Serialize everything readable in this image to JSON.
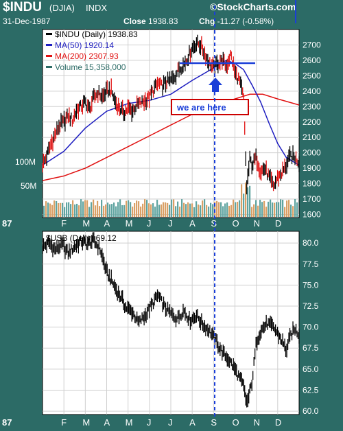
{
  "header": {
    "symbol": "$INDU",
    "exchange": "(DJIA)",
    "type": "INDX",
    "brand": "©StockCharts.com",
    "date": "31-Dec-1987",
    "close_label": "Close",
    "close_value": "1938.83",
    "chg_label": "Chg",
    "chg_value": "-11.27 (-0.58%)"
  },
  "colors": {
    "background": "#2c6b66",
    "panel": "#ffffff",
    "price": "#000000",
    "ma50": "#1d1dc0",
    "ma200": "#e01010",
    "volume_up": "#5fa4a0",
    "volume_down": "#d9a066",
    "annotation": "#1b3fd8"
  },
  "chart_data": [
    {
      "type": "line",
      "panel": "upper",
      "legend": [
        {
          "label": "$INDU (Daily) 1938.83",
          "color": "#000000"
        },
        {
          "label": "MA(50) 1920.14",
          "color": "#1d1dc0"
        },
        {
          "label": "MA(200) 2307.93",
          "color": "#e01010"
        },
        {
          "label": "Volume 15,358,000",
          "color": "#2c6b66"
        }
      ],
      "x_months": [
        "87",
        "F",
        "M",
        "A",
        "M",
        "J",
        "J",
        "A",
        "S",
        "O",
        "N",
        "D"
      ],
      "xlim": [
        0,
        12
      ],
      "ylim": [
        1580,
        2800
      ],
      "y_ticks": [
        1600,
        1700,
        1800,
        1900,
        2000,
        2100,
        2200,
        2300,
        2400,
        2500,
        2600,
        2700
      ],
      "volume_ticks": [
        "50M",
        "100M"
      ],
      "series": [
        {
          "name": "$INDU",
          "x": [
            0,
            0.2,
            0.4,
            0.6,
            0.8,
            1.0,
            1.2,
            1.4,
            1.6,
            1.8,
            2.0,
            2.2,
            2.4,
            2.6,
            2.8,
            3.0,
            3.2,
            3.4,
            3.6,
            3.8,
            4.0,
            4.2,
            4.4,
            4.6,
            4.8,
            5.0,
            5.2,
            5.4,
            5.6,
            5.8,
            6.0,
            6.2,
            6.4,
            6.6,
            6.8,
            7.0,
            7.2,
            7.4,
            7.6,
            7.8,
            8.0,
            8.2,
            8.4,
            8.6,
            8.8,
            9.0,
            9.2,
            9.4,
            9.55,
            9.7,
            9.8,
            10.0,
            10.2,
            10.4,
            10.6,
            10.8,
            11.0,
            11.2,
            11.4,
            11.6,
            11.8,
            12.0
          ],
          "values": [
            1920,
            1980,
            2060,
            2120,
            2180,
            2200,
            2240,
            2210,
            2280,
            2300,
            2330,
            2280,
            2360,
            2390,
            2360,
            2400,
            2410,
            2330,
            2290,
            2260,
            2290,
            2270,
            2310,
            2320,
            2340,
            2360,
            2410,
            2450,
            2430,
            2460,
            2470,
            2500,
            2550,
            2570,
            2620,
            2680,
            2710,
            2700,
            2640,
            2580,
            2550,
            2580,
            2600,
            2560,
            2640,
            2520,
            2470,
            2360,
            1780,
            1960,
            1920,
            1970,
            1880,
            1900,
            1840,
            1780,
            1840,
            1870,
            1920,
            1980,
            1970,
            1939
          ]
        },
        {
          "name": "MA(50)",
          "x": [
            0,
            1,
            2,
            3,
            4,
            5,
            6,
            7,
            8,
            8.6,
            9.0,
            9.4,
            9.8,
            10.2,
            10.6,
            11.0,
            11.4,
            12.0
          ],
          "values": [
            1920,
            2010,
            2160,
            2270,
            2320,
            2340,
            2380,
            2470,
            2550,
            2600,
            2580,
            2540,
            2440,
            2330,
            2190,
            2060,
            1970,
            1920
          ]
        },
        {
          "name": "MA(200)",
          "x": [
            0,
            1,
            2,
            3,
            4,
            5,
            6,
            7,
            8,
            9,
            9.7,
            10.3,
            11,
            12
          ],
          "values": [
            1820,
            1850,
            1900,
            1970,
            2040,
            2110,
            2180,
            2250,
            2310,
            2350,
            2380,
            2380,
            2350,
            2310
          ]
        }
      ],
      "annotations": [
        {
          "text": "we are here"
        }
      ]
    },
    {
      "type": "line",
      "panel": "lower",
      "legend": [
        {
          "label": "$USB (Daily) 69.12",
          "color": "#000000"
        }
      ],
      "x_months": [
        "87",
        "F",
        "M",
        "A",
        "M",
        "J",
        "J",
        "A",
        "S",
        "O",
        "N",
        "D"
      ],
      "xlim": [
        0,
        12
      ],
      "ylim": [
        59.6,
        81.4
      ],
      "y_ticks": [
        "60.0",
        "62.5",
        "65.0",
        "67.5",
        "70.0",
        "72.5",
        "75.0",
        "77.5",
        "80.0"
      ],
      "series": [
        {
          "name": "$USB",
          "x": [
            0,
            0.3,
            0.6,
            0.9,
            1.2,
            1.5,
            1.8,
            2.1,
            2.4,
            2.7,
            3.0,
            3.3,
            3.5,
            3.7,
            3.9,
            4.2,
            4.5,
            4.8,
            5.1,
            5.4,
            5.7,
            6.0,
            6.3,
            6.6,
            6.9,
            7.2,
            7.5,
            7.8,
            8.1,
            8.4,
            8.7,
            9.0,
            9.2,
            9.4,
            9.5,
            9.6,
            9.8,
            10.0,
            10.2,
            10.5,
            10.8,
            11.0,
            11.2,
            11.4,
            11.6,
            11.8,
            12.0
          ],
          "values": [
            79.5,
            80.0,
            79.2,
            79.8,
            78.8,
            79.6,
            80.2,
            79.9,
            80.3,
            79.2,
            76.5,
            75.2,
            74.2,
            73.4,
            72.3,
            71.8,
            70.5,
            71.4,
            72.6,
            73.8,
            72.4,
            71.6,
            71.0,
            72.0,
            70.8,
            71.4,
            70.3,
            69.6,
            68.4,
            67.0,
            66.2,
            65.0,
            64.0,
            63.0,
            61.4,
            61.2,
            63.5,
            68.2,
            69.6,
            70.4,
            70.0,
            69.2,
            68.4,
            67.2,
            69.0,
            69.8,
            69.1
          ]
        }
      ]
    }
  ]
}
